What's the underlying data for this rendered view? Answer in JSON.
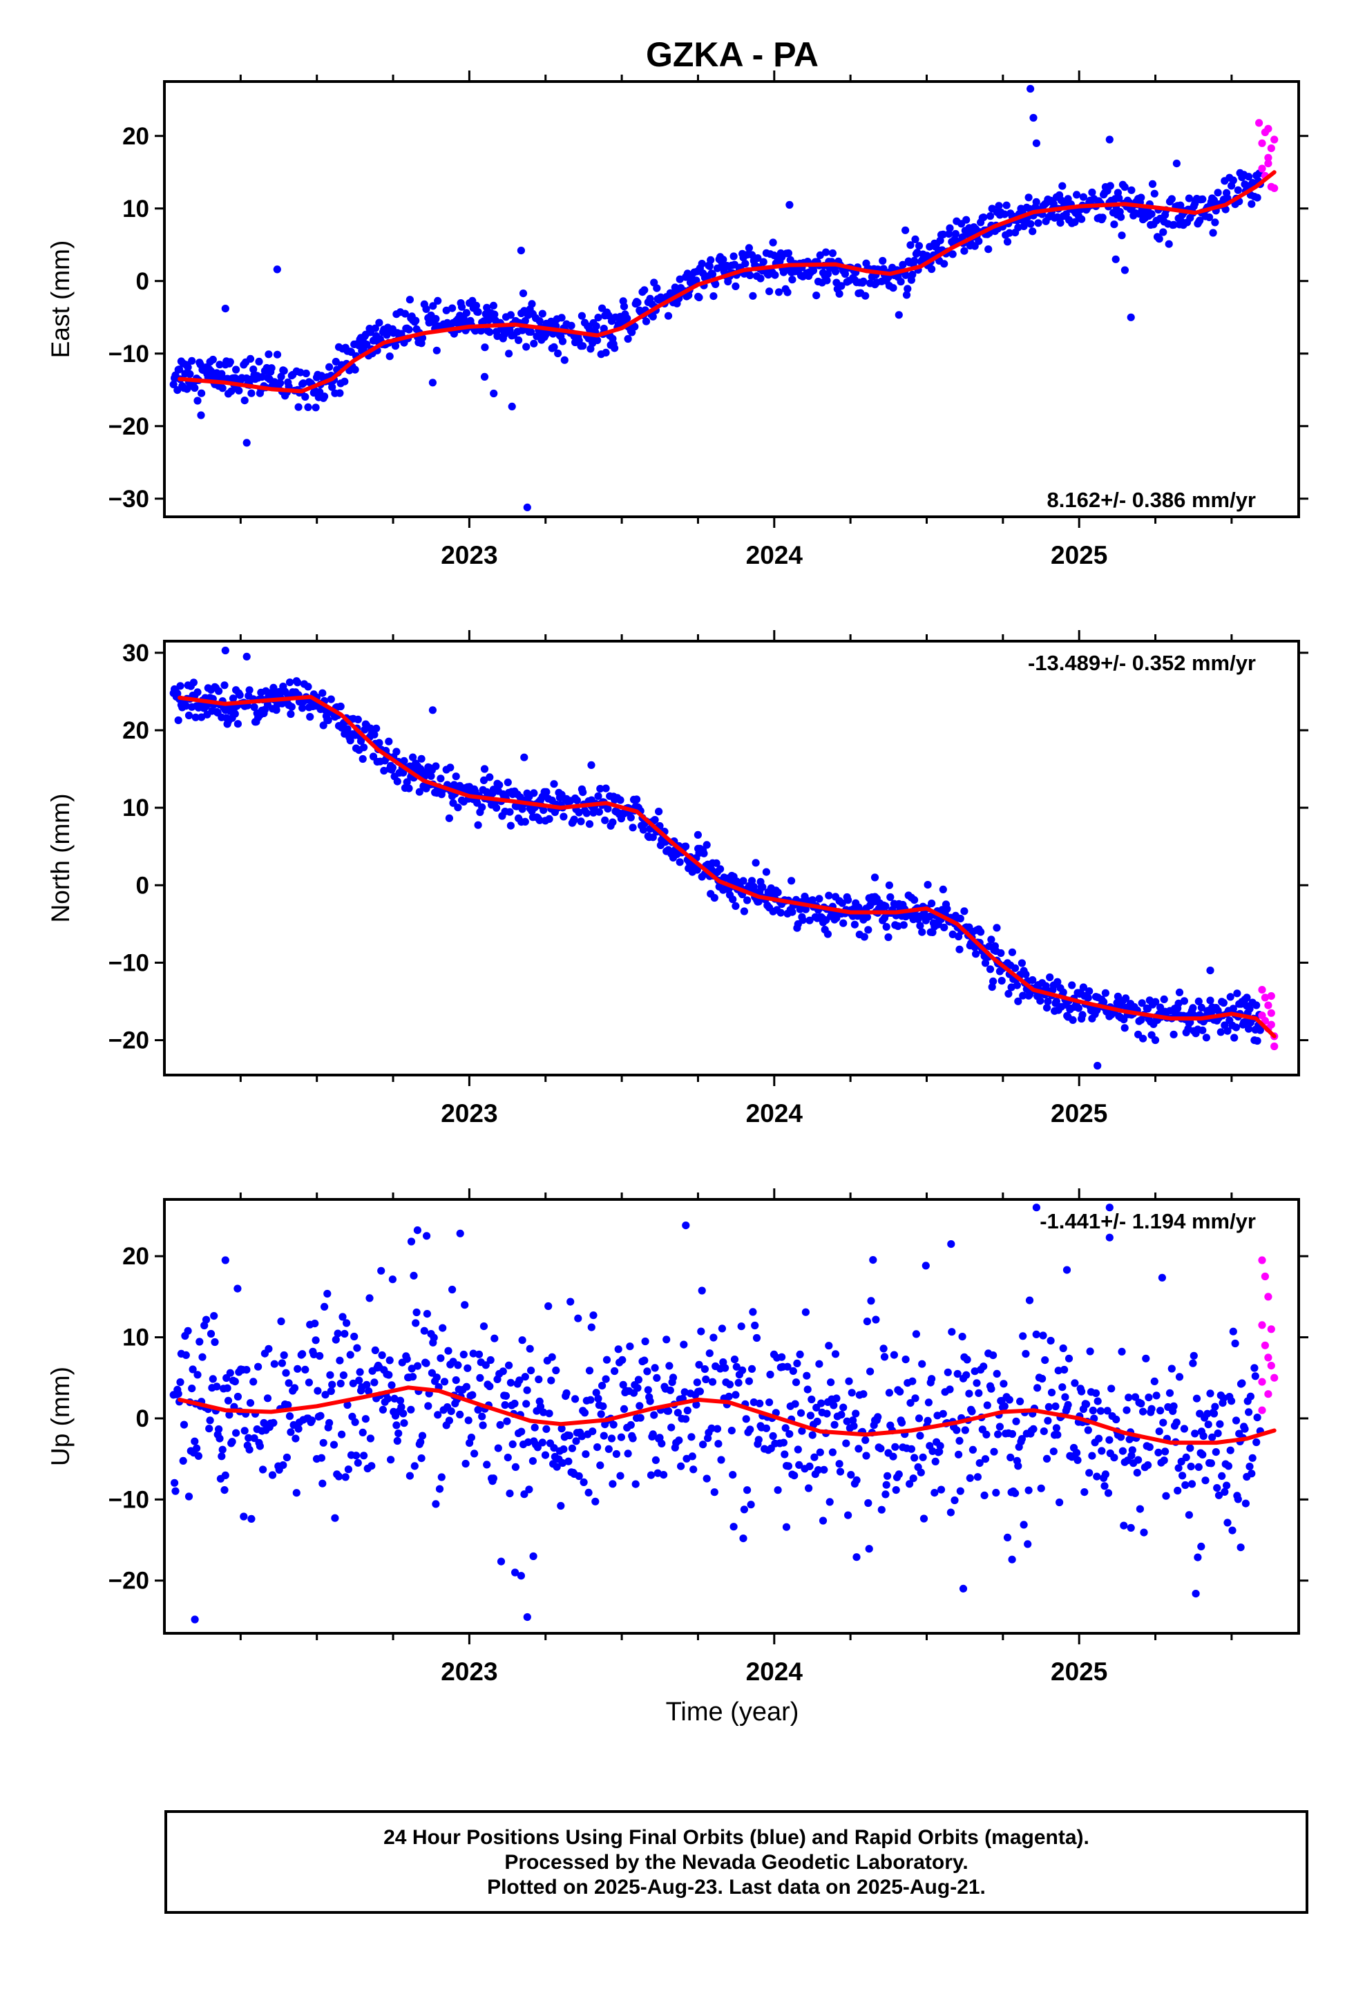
{
  "title": "GZKA - PA",
  "colors": {
    "final": "#0000ff",
    "rapid": "#ff00ff",
    "fit": "#ff0000",
    "axis": "#000000"
  },
  "x_axis": {
    "ticks": [
      2023,
      2024,
      2025
    ],
    "label": "Time (year)",
    "range": [
      2022.0,
      2025.72
    ]
  },
  "chart_data": [
    {
      "type": "scatter",
      "ylabel": "East (mm)",
      "ylim": [
        -32.5,
        27.5
      ],
      "yticks": [
        -30,
        -20,
        -10,
        0,
        10,
        20
      ],
      "rate": "8.162+/- 0.386 mm/yr",
      "rate_pos": "bottom-right",
      "series": [
        {
          "kind": "final",
          "anchors": [
            [
              2022.1,
              -12.8
            ],
            [
              2022.33,
              -13.5
            ],
            [
              2022.45,
              -14.5
            ],
            [
              2022.55,
              -13.5
            ],
            [
              2022.62,
              -10.0
            ],
            [
              2022.72,
              -7.5
            ],
            [
              2022.95,
              -5.5
            ],
            [
              2023.15,
              -6.0
            ],
            [
              2023.35,
              -7.5
            ],
            [
              2023.45,
              -7.5
            ],
            [
              2023.6,
              -3.0
            ],
            [
              2023.8,
              1.0
            ],
            [
              2024.0,
              2.0
            ],
            [
              2024.15,
              2.0
            ],
            [
              2024.3,
              0.5
            ],
            [
              2024.42,
              1.0
            ],
            [
              2024.55,
              4.0
            ],
            [
              2024.75,
              8.0
            ],
            [
              2024.9,
              10.0
            ],
            [
              2025.1,
              10.5
            ],
            [
              2025.25,
              10.0
            ],
            [
              2025.38,
              9.5
            ],
            [
              2025.5,
              11.5
            ],
            [
              2025.6,
              14.0
            ]
          ],
          "noise": 1.4,
          "outliers": [
            [
              2022.2,
              -3.8
            ],
            [
              2022.27,
              -22.3
            ],
            [
              2022.37,
              1.6
            ],
            [
              2022.12,
              -18.5
            ],
            [
              2023.08,
              -15.5
            ],
            [
              2023.17,
              4.2
            ],
            [
              2023.14,
              -17.3
            ],
            [
              2023.19,
              -31.2
            ],
            [
              2024.84,
              26.5
            ],
            [
              2024.85,
              22.5
            ],
            [
              2024.86,
              19.0
            ],
            [
              2025.1,
              19.5
            ],
            [
              2025.17,
              -5.0
            ],
            [
              2025.12,
              3.0
            ],
            [
              2025.15,
              1.5
            ],
            [
              2023.05,
              -13.2
            ],
            [
              2022.88,
              -14.0
            ],
            [
              2024.05,
              10.5
            ],
            [
              2024.43,
              7.0
            ],
            [
              2025.32,
              16.2
            ]
          ]
        },
        {
          "kind": "rapid",
          "points": [
            [
              2025.59,
              21.8
            ],
            [
              2025.6,
              19.0
            ],
            [
              2025.61,
              20.5
            ],
            [
              2025.62,
              17.0
            ],
            [
              2025.63,
              18.3
            ],
            [
              2025.61,
              14.5
            ],
            [
              2025.62,
              16.2
            ],
            [
              2025.63,
              13.0
            ],
            [
              2025.64,
              19.5
            ],
            [
              2025.6,
              15.5
            ],
            [
              2025.64,
              12.8
            ],
            [
              2025.62,
              21.0
            ]
          ]
        },
        {
          "kind": "fit",
          "curve": [
            [
              2022.05,
              -13.5
            ],
            [
              2022.2,
              -14.0
            ],
            [
              2022.35,
              -14.9
            ],
            [
              2022.45,
              -15.2
            ],
            [
              2022.55,
              -13.5
            ],
            [
              2022.62,
              -11.0
            ],
            [
              2022.72,
              -8.5
            ],
            [
              2022.85,
              -7.2
            ],
            [
              2023.0,
              -6.3
            ],
            [
              2023.15,
              -6.0
            ],
            [
              2023.3,
              -6.8
            ],
            [
              2023.42,
              -7.5
            ],
            [
              2023.5,
              -6.5
            ],
            [
              2023.62,
              -3.5
            ],
            [
              2023.75,
              -0.5
            ],
            [
              2023.9,
              1.5
            ],
            [
              2024.05,
              2.2
            ],
            [
              2024.2,
              2.3
            ],
            [
              2024.3,
              1.4
            ],
            [
              2024.38,
              1.0
            ],
            [
              2024.48,
              2.0
            ],
            [
              2024.58,
              4.5
            ],
            [
              2024.72,
              7.5
            ],
            [
              2024.85,
              9.5
            ],
            [
              2025.0,
              10.3
            ],
            [
              2025.15,
              10.6
            ],
            [
              2025.28,
              10.0
            ],
            [
              2025.38,
              9.4
            ],
            [
              2025.48,
              10.5
            ],
            [
              2025.58,
              13.0
            ],
            [
              2025.64,
              15.0
            ]
          ]
        }
      ]
    },
    {
      "type": "scatter",
      "ylabel": "North (mm)",
      "ylim": [
        -24.5,
        31.5
      ],
      "yticks": [
        -20,
        -10,
        0,
        10,
        20,
        30
      ],
      "rate": "-13.489+/- 0.352 mm/yr",
      "rate_pos": "top-right",
      "series": [
        {
          "kind": "final",
          "anchors": [
            [
              2022.1,
              23.5
            ],
            [
              2022.3,
              23.5
            ],
            [
              2022.45,
              24.5
            ],
            [
              2022.55,
              22.0
            ],
            [
              2022.65,
              19.0
            ],
            [
              2022.75,
              16.0
            ],
            [
              2022.9,
              12.5
            ],
            [
              2023.1,
              11.0
            ],
            [
              2023.3,
              10.0
            ],
            [
              2023.45,
              10.5
            ],
            [
              2023.55,
              9.0
            ],
            [
              2023.7,
              4.0
            ],
            [
              2023.85,
              0.0
            ],
            [
              2024.05,
              -2.5
            ],
            [
              2024.2,
              -3.5
            ],
            [
              2024.4,
              -3.5
            ],
            [
              2024.55,
              -3.5
            ],
            [
              2024.65,
              -7.0
            ],
            [
              2024.8,
              -12.5
            ],
            [
              2024.95,
              -15.0
            ],
            [
              2025.1,
              -16.0
            ],
            [
              2025.25,
              -17.0
            ],
            [
              2025.4,
              -17.5
            ],
            [
              2025.55,
              -17.0
            ],
            [
              2025.6,
              -18.5
            ]
          ],
          "noise": 1.2,
          "outliers": [
            [
              2022.2,
              30.3
            ],
            [
              2022.27,
              29.5
            ],
            [
              2022.88,
              22.6
            ],
            [
              2023.18,
              16.5
            ],
            [
              2023.4,
              15.5
            ],
            [
              2023.05,
              15.0
            ],
            [
              2023.75,
              6.5
            ],
            [
              2024.33,
              1.0
            ],
            [
              2024.73,
              -5.5
            ],
            [
              2025.25,
              -20.0
            ],
            [
              2025.06,
              -23.3
            ],
            [
              2025.43,
              -11.0
            ],
            [
              2025.55,
              -14.5
            ]
          ]
        },
        {
          "kind": "rapid",
          "points": [
            [
              2025.6,
              -13.5
            ],
            [
              2025.61,
              -14.5
            ],
            [
              2025.62,
              -15.5
            ],
            [
              2025.63,
              -16.5
            ],
            [
              2025.61,
              -17.5
            ],
            [
              2025.62,
              -18.5
            ],
            [
              2025.63,
              -14.3
            ],
            [
              2025.64,
              -19.5
            ],
            [
              2025.64,
              -20.8
            ],
            [
              2025.6,
              -16.8
            ],
            [
              2025.63,
              -18.0
            ]
          ]
        },
        {
          "kind": "fit",
          "curve": [
            [
              2022.05,
              24.2
            ],
            [
              2022.2,
              23.4
            ],
            [
              2022.35,
              23.9
            ],
            [
              2022.48,
              24.3
            ],
            [
              2022.58,
              22.0
            ],
            [
              2022.7,
              17.5
            ],
            [
              2022.85,
              13.5
            ],
            [
              2023.0,
              11.5
            ],
            [
              2023.15,
              10.8
            ],
            [
              2023.3,
              10.0
            ],
            [
              2023.45,
              10.6
            ],
            [
              2023.55,
              9.5
            ],
            [
              2023.68,
              5.0
            ],
            [
              2023.82,
              0.5
            ],
            [
              2023.95,
              -1.5
            ],
            [
              2024.1,
              -2.5
            ],
            [
              2024.25,
              -3.5
            ],
            [
              2024.4,
              -3.5
            ],
            [
              2024.5,
              -3.0
            ],
            [
              2024.6,
              -5.0
            ],
            [
              2024.72,
              -9.5
            ],
            [
              2024.85,
              -13.5
            ],
            [
              2025.0,
              -15.0
            ],
            [
              2025.15,
              -16.3
            ],
            [
              2025.3,
              -17.2
            ],
            [
              2025.4,
              -17.2
            ],
            [
              2025.5,
              -16.6
            ],
            [
              2025.58,
              -17.2
            ],
            [
              2025.64,
              -19.5
            ]
          ]
        }
      ]
    },
    {
      "type": "scatter",
      "ylabel": "Up (mm)",
      "ylim": [
        -26.5,
        27.0
      ],
      "yticks": [
        -20,
        -10,
        0,
        10,
        20
      ],
      "rate": "-1.441+/- 1.194 mm/yr",
      "rate_pos": "top-right",
      "series": [
        {
          "kind": "final",
          "anchors": [
            [
              2022.1,
              2.0
            ],
            [
              2022.3,
              1.0
            ],
            [
              2022.5,
              2.0
            ],
            [
              2022.7,
              3.0
            ],
            [
              2022.85,
              4.0
            ],
            [
              2023.0,
              2.0
            ],
            [
              2023.2,
              0.0
            ],
            [
              2023.4,
              -1.0
            ],
            [
              2023.6,
              1.0
            ],
            [
              2023.8,
              2.5
            ],
            [
              2024.0,
              1.0
            ],
            [
              2024.2,
              -1.5
            ],
            [
              2024.4,
              -1.5
            ],
            [
              2024.6,
              0.0
            ],
            [
              2024.8,
              1.0
            ],
            [
              2025.0,
              0.0
            ],
            [
              2025.2,
              -2.0
            ],
            [
              2025.4,
              -3.0
            ],
            [
              2025.58,
              -2.0
            ]
          ],
          "noise": 5.5,
          "outliers": [
            [
              2022.1,
              -24.8
            ],
            [
              2022.2,
              19.5
            ],
            [
              2022.24,
              16.0
            ],
            [
              2022.83,
              23.2
            ],
            [
              2022.86,
              22.5
            ],
            [
              2022.97,
              22.8
            ],
            [
              2022.81,
              21.8
            ],
            [
              2023.15,
              -19.0
            ],
            [
              2023.17,
              -19.4
            ],
            [
              2023.19,
              -24.5
            ],
            [
              2023.71,
              23.8
            ],
            [
              2024.62,
              -21.0
            ],
            [
              2024.58,
              21.5
            ],
            [
              2024.78,
              -17.4
            ],
            [
              2024.86,
              26.0
            ],
            [
              2024.96,
              18.3
            ],
            [
              2025.1,
              26.0
            ],
            [
              2025.1,
              22.3
            ],
            [
              2025.17,
              -13.5
            ],
            [
              2025.4,
              -15.8
            ],
            [
              2025.53,
              -15.9
            ],
            [
              2024.27,
              -17.1
            ],
            [
              2024.04,
              -13.4
            ],
            [
              2023.21,
              -17.0
            ]
          ]
        },
        {
          "kind": "rapid",
          "points": [
            [
              2025.6,
              19.5
            ],
            [
              2025.61,
              17.5
            ],
            [
              2025.62,
              15.0
            ],
            [
              2025.6,
              11.5
            ],
            [
              2025.63,
              11.0
            ],
            [
              2025.61,
              9.0
            ],
            [
              2025.62,
              7.5
            ],
            [
              2025.63,
              6.5
            ],
            [
              2025.64,
              5.0
            ],
            [
              2025.6,
              4.5
            ],
            [
              2025.62,
              3.0
            ],
            [
              2025.6,
              1.0
            ]
          ]
        },
        {
          "kind": "fit",
          "curve": [
            [
              2022.05,
              2.3
            ],
            [
              2022.2,
              1.0
            ],
            [
              2022.35,
              0.8
            ],
            [
              2022.5,
              1.5
            ],
            [
              2022.65,
              2.6
            ],
            [
              2022.8,
              3.8
            ],
            [
              2022.9,
              3.4
            ],
            [
              2023.05,
              1.5
            ],
            [
              2023.2,
              -0.3
            ],
            [
              2023.3,
              -0.7
            ],
            [
              2023.45,
              -0.2
            ],
            [
              2023.6,
              1.2
            ],
            [
              2023.75,
              2.3
            ],
            [
              2023.85,
              2.0
            ],
            [
              2024.0,
              0.2
            ],
            [
              2024.15,
              -1.6
            ],
            [
              2024.3,
              -2.0
            ],
            [
              2024.45,
              -1.5
            ],
            [
              2024.6,
              -0.5
            ],
            [
              2024.75,
              0.8
            ],
            [
              2024.85,
              1.0
            ],
            [
              2025.0,
              0.0
            ],
            [
              2025.15,
              -1.8
            ],
            [
              2025.3,
              -3.0
            ],
            [
              2025.45,
              -3.0
            ],
            [
              2025.55,
              -2.5
            ],
            [
              2025.64,
              -1.5
            ]
          ]
        }
      ]
    }
  ],
  "footer": {
    "line1": "24 Hour Positions Using Final Orbits (blue) and Rapid Orbits (magenta).",
    "line2": "Processed by the Nevada Geodetic Laboratory.",
    "line3": "Plotted on 2025-Aug-23. Last data on 2025-Aug-21."
  }
}
